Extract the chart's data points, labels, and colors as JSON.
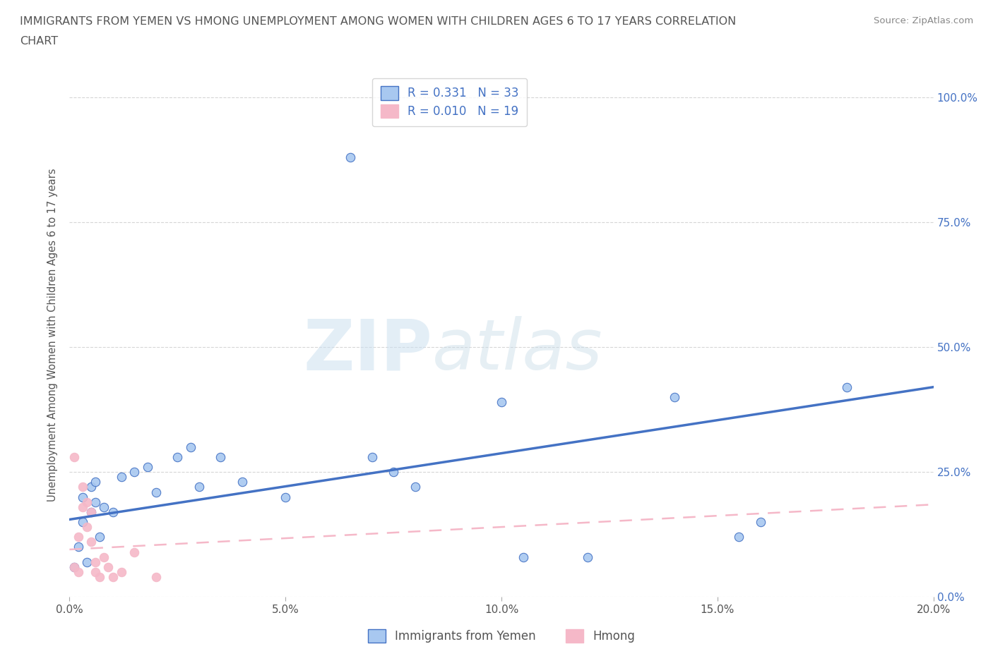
{
  "title_line1": "IMMIGRANTS FROM YEMEN VS HMONG UNEMPLOYMENT AMONG WOMEN WITH CHILDREN AGES 6 TO 17 YEARS CORRELATION",
  "title_line2": "CHART",
  "source": "Source: ZipAtlas.com",
  "ylabel": "Unemployment Among Women with Children Ages 6 to 17 years",
  "xlim": [
    0.0,
    0.2
  ],
  "ylim": [
    0.0,
    1.05
  ],
  "xticks": [
    0.0,
    0.05,
    0.1,
    0.15,
    0.2
  ],
  "xticklabels": [
    "0.0%",
    "5.0%",
    "10.0%",
    "15.0%",
    "20.0%"
  ],
  "yticks_right": [
    0.0,
    0.25,
    0.5,
    0.75,
    1.0
  ],
  "yticklabels_right": [
    "0.0%",
    "25.0%",
    "50.0%",
    "75.0%",
    "100.0%"
  ],
  "legend_r_yemen": "0.331",
  "legend_n_yemen": "33",
  "legend_r_hmong": "0.010",
  "legend_n_hmong": "19",
  "yemen_scatter_x": [
    0.001,
    0.002,
    0.003,
    0.003,
    0.004,
    0.005,
    0.005,
    0.006,
    0.006,
    0.007,
    0.008,
    0.01,
    0.012,
    0.015,
    0.018,
    0.02,
    0.025,
    0.028,
    0.03,
    0.035,
    0.04,
    0.05,
    0.065,
    0.07,
    0.075,
    0.08,
    0.1,
    0.105,
    0.12,
    0.14,
    0.155,
    0.16,
    0.18
  ],
  "yemen_scatter_y": [
    0.06,
    0.1,
    0.15,
    0.2,
    0.07,
    0.17,
    0.22,
    0.19,
    0.23,
    0.12,
    0.18,
    0.17,
    0.24,
    0.25,
    0.26,
    0.21,
    0.28,
    0.3,
    0.22,
    0.28,
    0.23,
    0.2,
    0.88,
    0.28,
    0.25,
    0.22,
    0.39,
    0.08,
    0.08,
    0.4,
    0.12,
    0.15,
    0.42
  ],
  "hmong_scatter_x": [
    0.001,
    0.001,
    0.002,
    0.002,
    0.003,
    0.003,
    0.004,
    0.004,
    0.005,
    0.005,
    0.006,
    0.006,
    0.007,
    0.008,
    0.009,
    0.01,
    0.012,
    0.015,
    0.02
  ],
  "hmong_scatter_y": [
    0.28,
    0.06,
    0.05,
    0.12,
    0.18,
    0.22,
    0.14,
    0.19,
    0.17,
    0.11,
    0.07,
    0.05,
    0.04,
    0.08,
    0.06,
    0.04,
    0.05,
    0.09,
    0.04
  ],
  "yemen_line_x": [
    0.0,
    0.2
  ],
  "yemen_line_y": [
    0.155,
    0.42
  ],
  "hmong_line_x": [
    0.0,
    0.2
  ],
  "hmong_line_y": [
    0.095,
    0.185
  ],
  "background_color": "#ffffff",
  "plot_bg_color": "#ffffff",
  "yemen_color": "#a8c8f0",
  "hmong_color": "#f5b8c8",
  "yemen_line_color": "#4472c4",
  "hmong_line_color": "#f5b8c8",
  "right_tick_color": "#4472c4",
  "grid_color": "#cccccc",
  "title_color": "#555555",
  "source_color": "#888888",
  "watermark_zip": "ZIP",
  "watermark_atlas": "atlas",
  "scatter_size": 80
}
